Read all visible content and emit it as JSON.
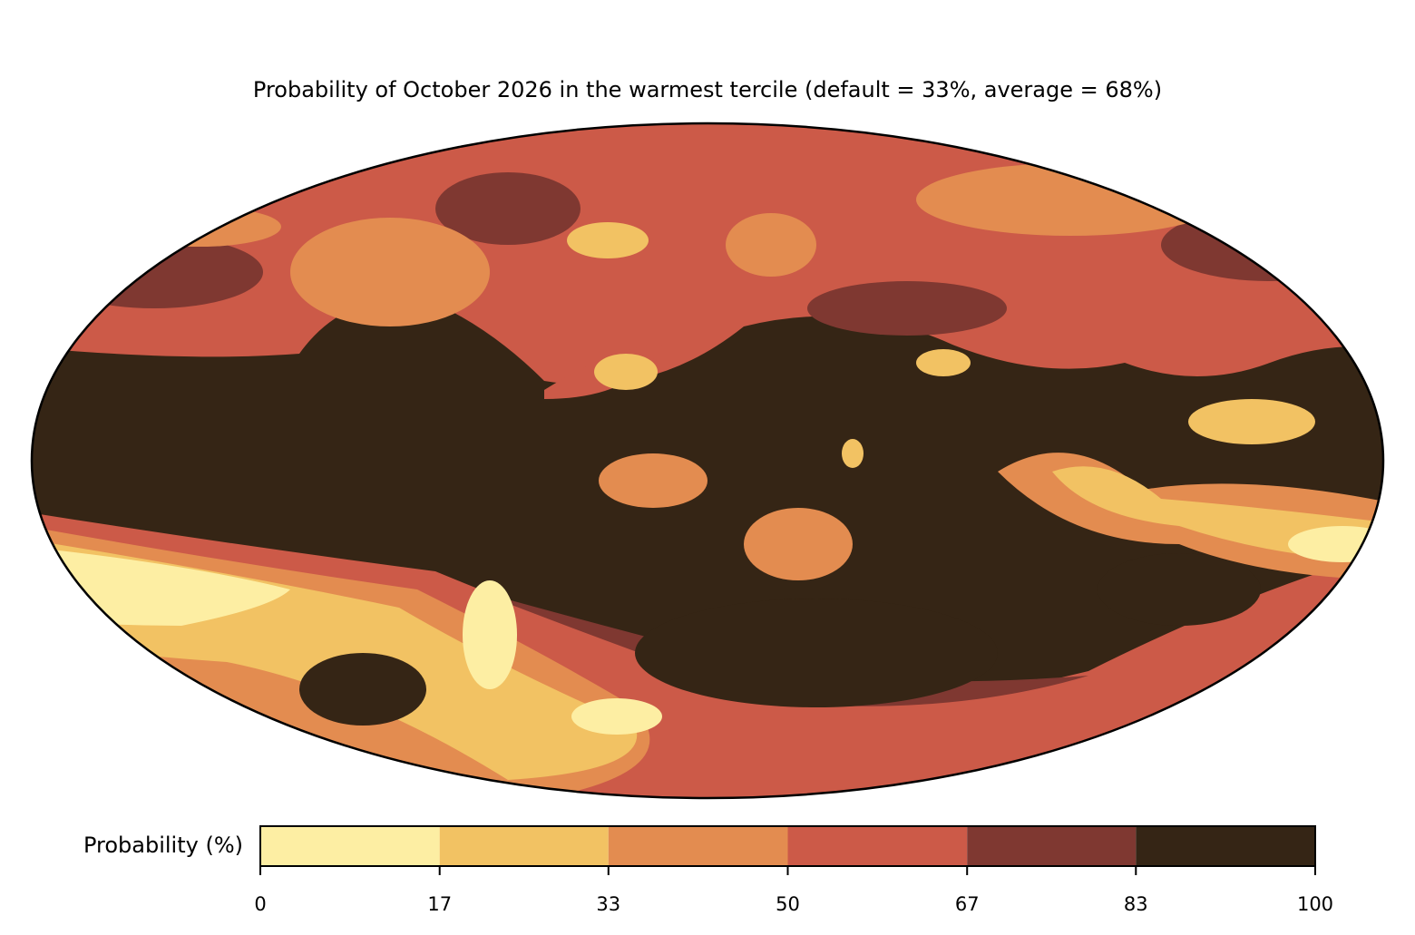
{
  "title": "Probability of October 2026 in the warmest tercile (default = 33%, average = 68%)",
  "colorbar": {
    "label": "Probability (%)",
    "lim": [
      0,
      100
    ],
    "ticks": [
      0,
      17,
      33,
      50,
      67,
      83,
      100
    ],
    "colors": [
      "#fdeea3",
      "#f2c263",
      "#e38c50",
      "#cc5a48",
      "#7f3831",
      "#352515"
    ]
  }
}
